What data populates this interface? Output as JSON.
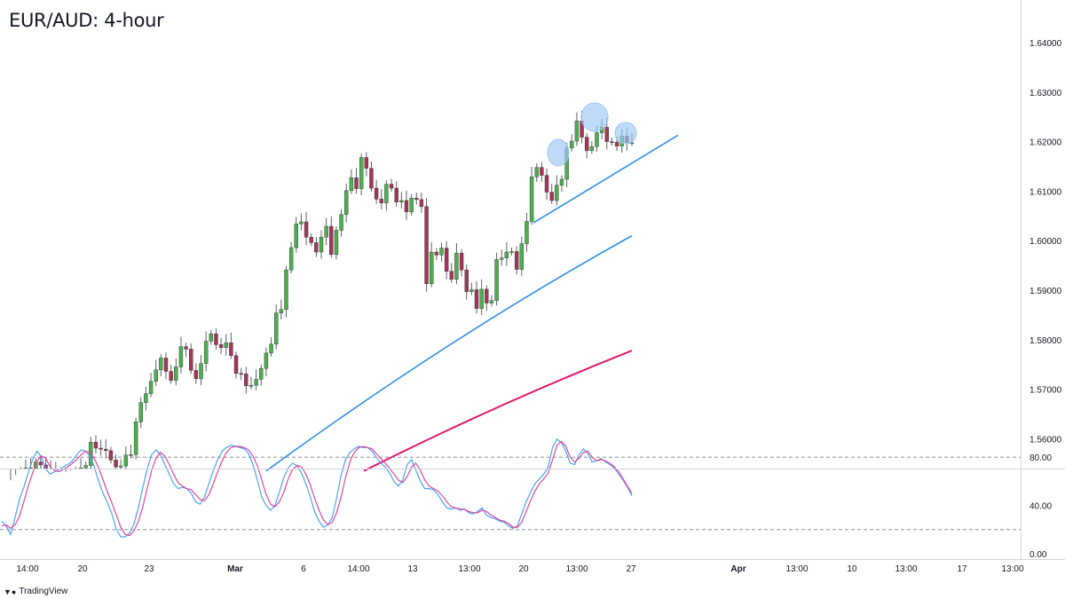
{
  "title": "EUR/AUD: 4-hour",
  "brand": {
    "name": "TradingView",
    "icon": "tradingview-logo-icon"
  },
  "colors": {
    "up_candle": "#4caf50",
    "down_candle": "#a5355b",
    "wick": "#5d606b",
    "ma_fast": "#2e8fe6",
    "ma_slow": "#e0166e",
    "trendline": "#2e8fe6",
    "stoch_k": "#4aa3f0",
    "stoch_d": "#e2459a",
    "highlight": "#9cc7f2"
  },
  "chart_data": [
    {
      "type": "candlestick",
      "title": "EUR/AUD: 4-hour",
      "ylim": [
        1.5535,
        1.6465
      ],
      "yticks": [
        "1.64000",
        "1.63000",
        "1.62000",
        "1.61000",
        "1.60000",
        "1.59000",
        "1.58000",
        "1.57000",
        "1.56000"
      ],
      "xticks": [
        "14:00",
        "20",
        "23",
        "Mar",
        "6",
        "14:00",
        "13",
        "13:00",
        "20",
        "13:00",
        "27",
        "Apr",
        "13:00",
        "10",
        "13:00",
        "17",
        "13:00"
      ],
      "candles_close": [
        1.5508,
        1.5516,
        1.5529,
        1.5541,
        1.5523,
        1.5553,
        1.5547,
        1.5539,
        1.553,
        1.5533,
        1.5515,
        1.5522,
        1.5516,
        1.5527,
        1.5541,
        1.5546,
        1.5593,
        1.5581,
        1.5579,
        1.5576,
        1.5557,
        1.5543,
        1.5545,
        1.5567,
        1.5568,
        1.5634,
        1.5673,
        1.5691,
        1.5716,
        1.5739,
        1.5763,
        1.5736,
        1.5718,
        1.5745,
        1.5786,
        1.5781,
        1.5738,
        1.5721,
        1.5752,
        1.5797,
        1.5812,
        1.579,
        1.5784,
        1.5794,
        1.5768,
        1.5732,
        1.5731,
        1.5707,
        1.5708,
        1.572,
        1.5742,
        1.5773,
        1.5791,
        1.5854,
        1.5861,
        1.5941,
        1.5986,
        1.6034,
        1.6038,
        1.6007,
        1.5996,
        1.5977,
        1.6007,
        1.6029,
        1.5972,
        1.6021,
        1.6053,
        1.6101,
        1.6127,
        1.6105,
        1.6168,
        1.6146,
        1.6106,
        1.6084,
        1.6076,
        1.6114,
        1.6106,
        1.6078,
        1.6081,
        1.6058,
        1.6086,
        1.6083,
        1.6069,
        1.5913,
        1.5977,
        1.5971,
        1.5985,
        1.5938,
        1.5922,
        1.5975,
        1.5941,
        1.5897,
        1.5901,
        1.5863,
        1.5902,
        1.5874,
        1.5879,
        1.5962,
        1.5965,
        1.5977,
        1.5978,
        1.5942,
        1.5994,
        1.6039,
        1.6129,
        1.6148,
        1.6132,
        1.6098,
        1.6081,
        1.6112,
        1.6124,
        1.6187,
        1.6201,
        1.6242,
        1.6209,
        1.6182,
        1.619,
        1.6218,
        1.6229,
        1.62,
        1.6199,
        1.6191,
        1.6211,
        1.6198,
        1.6198
      ],
      "candles_start": "2023-02-15",
      "candles_interval": "4h",
      "candles_note": "OHLC values of the 125 bars drawn are estimated from the axis; only closes are listed",
      "series": [
        {
          "name": "",
          "type": "line",
          "y_end": 1.601,
          "y_start": 1.5535
        },
        {
          "name": "",
          "type": "line",
          "y_end": 1.5778,
          "y_start": 1.5535
        }
      ],
      "annotations": {
        "trendline": {
          "y_from": 1.6036,
          "y_to": 1.6213
        },
        "highlight_circles": 3
      }
    },
    {
      "type": "line",
      "title": "",
      "ylim": [
        -2,
        100
      ],
      "yticks": [
        "80.00",
        "40.00",
        "0.00"
      ],
      "levels": [
        80,
        20
      ],
      "series": [
        {
          "name": "",
          "values": [
            27,
            23,
            16,
            30,
            45,
            55,
            67,
            78,
            85,
            80,
            70,
            66,
            68,
            70,
            72,
            74,
            77,
            82,
            86,
            85,
            81,
            72,
            60,
            50,
            42,
            33,
            20,
            14,
            14,
            17,
            25,
            38,
            55,
            70,
            82,
            86,
            82,
            74,
            66,
            58,
            54,
            55,
            54,
            50,
            43,
            41,
            47,
            58,
            69,
            78,
            85,
            88,
            90,
            89,
            88,
            87,
            83,
            74,
            61,
            47,
            40,
            36,
            40,
            51,
            63,
            71,
            75,
            73,
            67,
            58,
            47,
            35,
            27,
            22,
            24,
            30,
            46,
            65,
            78,
            84,
            87,
            89,
            88,
            88,
            85,
            80,
            75,
            72,
            67,
            60,
            56,
            61,
            74,
            78,
            69,
            60,
            54,
            54,
            53,
            49,
            43,
            38,
            37,
            38,
            36,
            37,
            34,
            33,
            35,
            38,
            32,
            30,
            29,
            27,
            26,
            23,
            21,
            23,
            33,
            43,
            51,
            58,
            62,
            66,
            72,
            88,
            95,
            92,
            85,
            75,
            74,
            82,
            87,
            83,
            76,
            77,
            79,
            76,
            74,
            71,
            66,
            61,
            55,
            48
          ]
        },
        {
          "name": "",
          "values": [
            23,
            24,
            21,
            24,
            31,
            43,
            56,
            67,
            77,
            81,
            79,
            72,
            69,
            68,
            70,
            72,
            75,
            78,
            82,
            85,
            84,
            79,
            71,
            61,
            51,
            42,
            32,
            22,
            16,
            15,
            19,
            27,
            39,
            54,
            69,
            79,
            84,
            81,
            74,
            66,
            59,
            56,
            54,
            53,
            49,
            45,
            44,
            49,
            58,
            68,
            77,
            84,
            88,
            89,
            89,
            88,
            86,
            81,
            73,
            61,
            49,
            41,
            39,
            43,
            51,
            62,
            70,
            73,
            72,
            66,
            57,
            46,
            36,
            28,
            24,
            26,
            34,
            47,
            63,
            76,
            84,
            88,
            89,
            88,
            87,
            83,
            79,
            75,
            71,
            66,
            61,
            59,
            64,
            72,
            75,
            69,
            61,
            56,
            54,
            52,
            48,
            43,
            39,
            38,
            37,
            37,
            35,
            34,
            34,
            36,
            35,
            32,
            30,
            28,
            27,
            25,
            22,
            22,
            26,
            35,
            44,
            52,
            58,
            62,
            67,
            78,
            90,
            93,
            89,
            80,
            76,
            79,
            84,
            85,
            80,
            77,
            78,
            77,
            75,
            72,
            68,
            62,
            56,
            50
          ]
        }
      ]
    }
  ]
}
